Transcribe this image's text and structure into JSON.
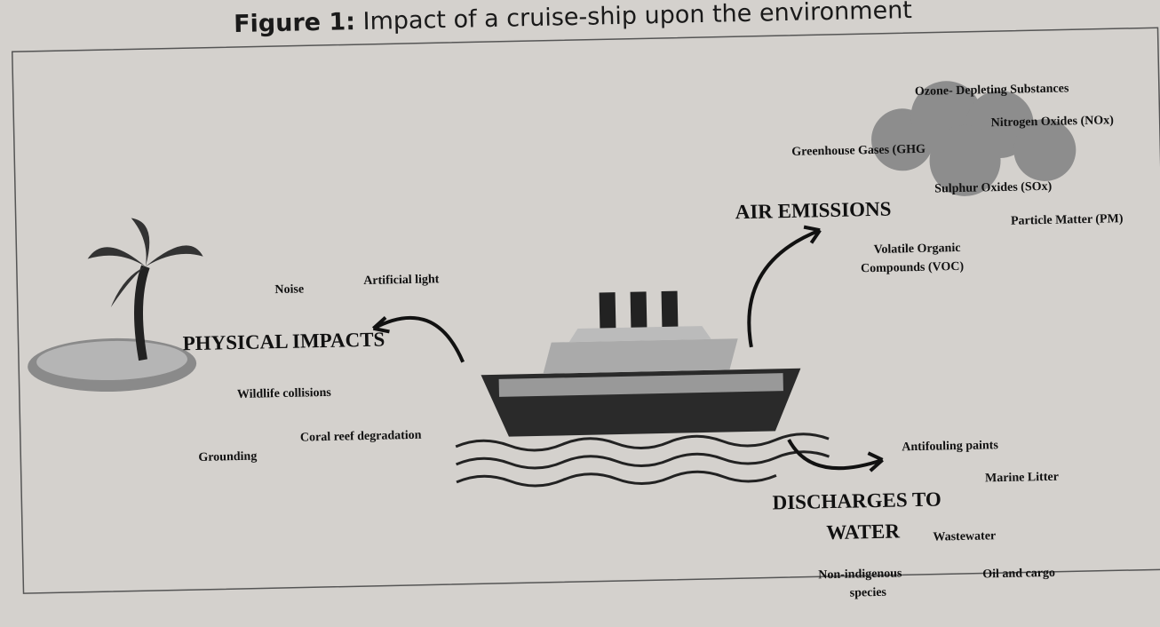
{
  "caption": {
    "label": "Figure 1:",
    "text": "Impact of a cruise-ship upon the environment"
  },
  "physical": {
    "title": "PHYSICAL IMPACTS",
    "items": [
      "Noise",
      "Artificial light",
      "Wildlife collisions",
      "Coral reef degradation",
      "Grounding"
    ]
  },
  "air": {
    "title": "AIR EMISSIONS",
    "items": [
      "Ozone- Depleting Substances",
      "Nitrogen Oxides (NOx)",
      "Greenhouse Gases (GHG",
      "Sulphur Oxides (SOx)",
      "Particle Matter (PM)"
    ],
    "voc": [
      "Volatile Organic",
      "Compounds (VOC)"
    ]
  },
  "water": {
    "title": [
      "DISCHARGES TO",
      "WATER"
    ],
    "items": [
      "Antifouling paints",
      "Marine Litter",
      "Wastewater",
      "Oil and cargo"
    ],
    "species": [
      "Non-indigenous",
      "species"
    ]
  }
}
